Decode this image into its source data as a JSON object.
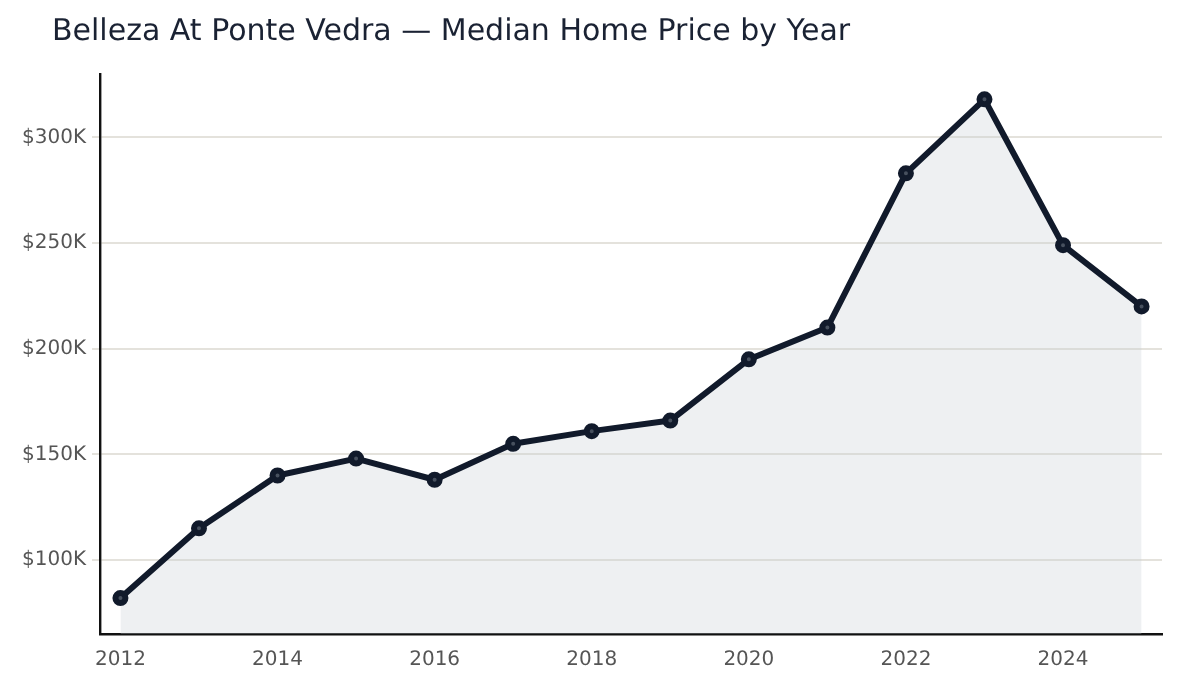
{
  "chart_data": {
    "type": "area",
    "title": "Belleza At Ponte Vedra — Median Home Price by Year",
    "x": [
      2012,
      2013,
      2014,
      2015,
      2016,
      2017,
      2018,
      2019,
      2020,
      2021,
      2022,
      2023,
      2024,
      2025
    ],
    "series": [
      {
        "color": "#111a2b",
        "values": [
          82000,
          115000,
          140000,
          148000,
          138000,
          155000,
          161000,
          166000,
          195000,
          210000,
          283000,
          318000,
          249000,
          220000
        ]
      }
    ],
    "xlim": [
      2011.74,
      2025.26
    ],
    "xticks": [
      2012,
      2014,
      2016,
      2018,
      2020,
      2022,
      2024
    ],
    "ylim": [
      65000,
      330000
    ],
    "yticks": [
      {
        "value": 100000,
        "label": "$100K"
      },
      {
        "value": 150000,
        "label": "$150K"
      },
      {
        "value": 200000,
        "label": "$200K"
      },
      {
        "value": 250000,
        "label": "$250K"
      },
      {
        "value": 300000,
        "label": "$300K"
      }
    ],
    "grid": "y",
    "legend": false,
    "marker": "circle",
    "line_style": "solid"
  }
}
